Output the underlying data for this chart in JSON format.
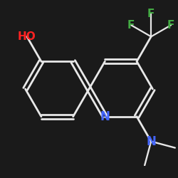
{
  "background_color": "#1a1a1a",
  "bond_color": "#e8e8e8",
  "bond_width": 2.0,
  "atom_colors": {
    "N": "#4466ff",
    "O": "#ff2222",
    "F": "#44aa44",
    "C": "#e8e8e8"
  },
  "font_size_atom": 11,
  "figsize": [
    2.5,
    2.5
  ],
  "dpi": 100
}
